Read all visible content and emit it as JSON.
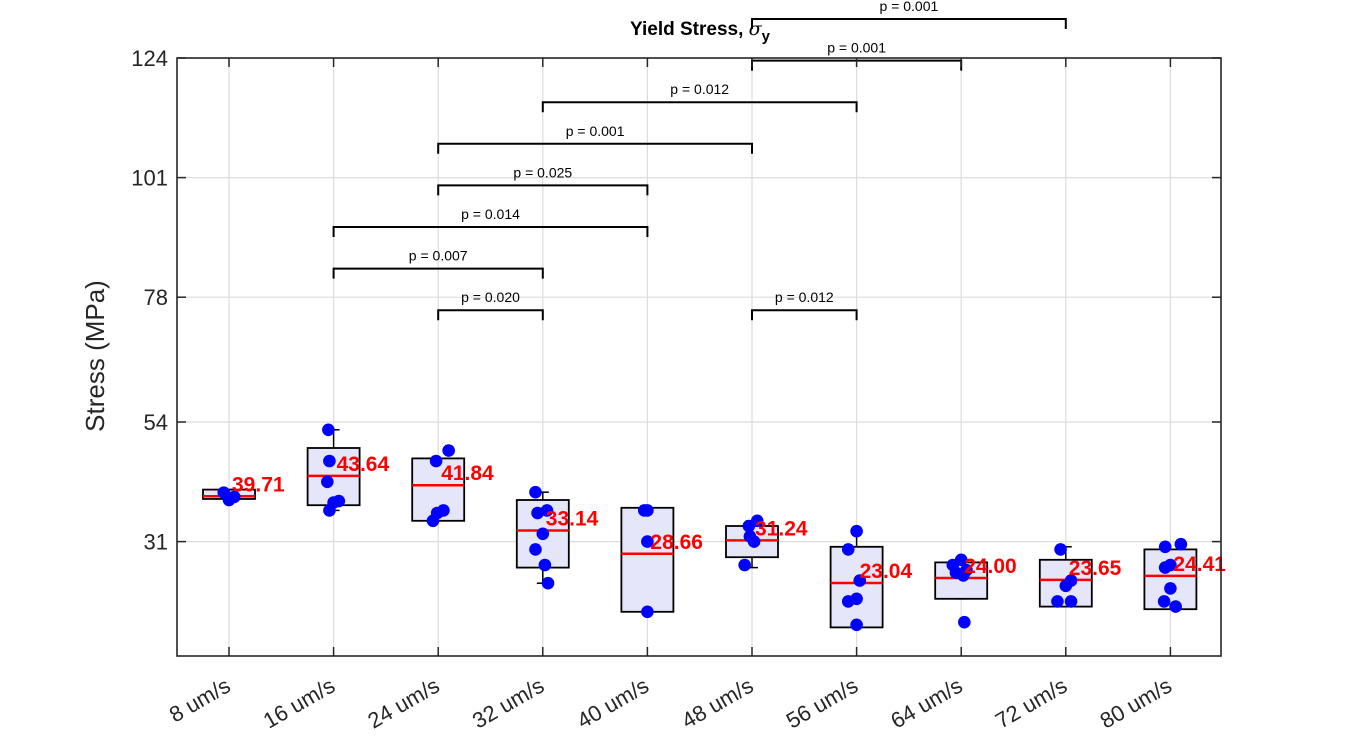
{
  "chart_data": {
    "type": "box",
    "title": "Yield Stress, ",
    "title_symbol": "σ",
    "title_subscript": "y",
    "xlabel": "",
    "ylabel": "Stress (MPa)",
    "ylim": [
      14,
      124
    ],
    "yticks": [
      "31",
      "54",
      "78",
      "101",
      "124"
    ],
    "grid": true,
    "categories": [
      "8 um/s",
      "16 um/s",
      "24 um/s",
      "32 um/s",
      "40 um/s",
      "48 um/s",
      "56 um/s",
      "64 um/s",
      "72 um/s",
      "80 um/s"
    ],
    "median_labels": [
      "39.71",
      "43.64",
      "41.84",
      "33.14",
      "28.66",
      "31.24",
      "23.04",
      "24.00",
      "23.65",
      "24.41"
    ],
    "medians": [
      39.71,
      43.64,
      41.84,
      33.14,
      28.66,
      31.24,
      23.04,
      24.0,
      23.65,
      24.41
    ],
    "boxes": [
      {
        "q1": 39.2,
        "q3": 41.0,
        "wlo": 39.2,
        "whi": 41.0
      },
      {
        "q1": 38.0,
        "q3": 49.0,
        "wlo": 37.0,
        "whi": 52.5
      },
      {
        "q1": 35.0,
        "q3": 47.0,
        "wlo": 35.0,
        "whi": 47.0
      },
      {
        "q1": 26.0,
        "q3": 39.0,
        "wlo": 23.0,
        "whi": 40.5
      },
      {
        "q1": 17.5,
        "q3": 37.5,
        "wlo": 17.5,
        "whi": 37.5
      },
      {
        "q1": 28.0,
        "q3": 34.0,
        "wlo": 26.0,
        "whi": 35.0
      },
      {
        "q1": 14.5,
        "q3": 30.0,
        "wlo": 14.5,
        "whi": 33.0
      },
      {
        "q1": 20.0,
        "q3": 27.0,
        "wlo": 20.0,
        "whi": 27.0
      },
      {
        "q1": 18.5,
        "q3": 27.5,
        "wlo": 18.5,
        "whi": 30.0
      },
      {
        "q1": 18.0,
        "q3": 29.5,
        "wlo": 18.0,
        "whi": 29.5
      }
    ],
    "points": [
      [
        [
          -0.05,
          40.4
        ],
        [
          0.05,
          39.6
        ],
        [
          0.0,
          39.0
        ]
      ],
      [
        [
          -0.05,
          52.5
        ],
        [
          -0.04,
          46.5
        ],
        [
          -0.06,
          42.5
        ],
        [
          0.0,
          38.5
        ],
        [
          0.05,
          38.8
        ],
        [
          -0.04,
          37.0
        ]
      ],
      [
        [
          -0.02,
          46.5
        ],
        [
          0.1,
          48.5
        ],
        [
          -0.01,
          36.5
        ],
        [
          0.05,
          37.0
        ],
        [
          -0.05,
          35.0
        ]
      ],
      [
        [
          -0.07,
          40.5
        ],
        [
          -0.05,
          36.5
        ],
        [
          0.0,
          32.5
        ],
        [
          0.04,
          37.0
        ],
        [
          -0.07,
          29.5
        ],
        [
          0.02,
          26.5
        ],
        [
          0.05,
          23.0
        ]
      ],
      [
        [
          -0.03,
          37.0
        ],
        [
          0.0,
          37.0
        ],
        [
          0.0,
          31.0
        ],
        [
          0.0,
          17.5
        ]
      ],
      [
        [
          -0.03,
          34.0
        ],
        [
          0.05,
          35.0
        ],
        [
          -0.02,
          32.0
        ],
        [
          0.02,
          31.0
        ],
        [
          -0.07,
          26.5
        ]
      ],
      [
        [
          -0.08,
          29.5
        ],
        [
          0.0,
          33.0
        ],
        [
          0.03,
          23.5
        ],
        [
          -0.08,
          19.5
        ],
        [
          0.0,
          20.0
        ],
        [
          0.0,
          15.0
        ]
      ],
      [
        [
          -0.08,
          26.5
        ],
        [
          0.0,
          27.5
        ],
        [
          -0.05,
          25.0
        ],
        [
          0.02,
          24.5
        ],
        [
          0.05,
          25.5
        ],
        [
          0.03,
          15.5
        ]
      ],
      [
        [
          -0.05,
          29.5
        ],
        [
          0.05,
          23.5
        ],
        [
          0.0,
          22.5
        ],
        [
          -0.08,
          19.5
        ],
        [
          0.05,
          19.5
        ]
      ],
      [
        [
          0.1,
          30.5
        ],
        [
          -0.05,
          30.0
        ],
        [
          -0.05,
          26.0
        ],
        [
          0.0,
          26.5
        ],
        [
          0.0,
          22.0
        ],
        [
          -0.06,
          19.5
        ],
        [
          0.05,
          18.5
        ]
      ]
    ],
    "significance": [
      {
        "from": 1,
        "to": 3,
        "y": 106.5,
        "label": "p = 0.001"
      },
      {
        "from": 1,
        "to": 3,
        "y": 106.5,
        "label": "p = 0.001"
      }
    ],
    "brackets": [
      {
        "from": 3,
        "to": 4,
        "y": 75.5,
        "label": "p = 0.020"
      },
      {
        "from": 2,
        "to": 4,
        "y": 83.5,
        "label": "p = 0.007"
      },
      {
        "from": 2,
        "to": 5,
        "y": 91.5,
        "label": "p = 0.014"
      },
      {
        "from": 3,
        "to": 5,
        "y": 99.5,
        "label": "p = 0.025"
      },
      {
        "from": 3,
        "to": 6,
        "y": 107.5,
        "label": "p = 0.001"
      },
      {
        "from": 4,
        "to": 7,
        "y": 115.5,
        "label": "p = 0.012"
      },
      {
        "from": 6,
        "to": 8,
        "y": 123.5,
        "label": "p = 0.001"
      },
      {
        "from": 6,
        "to": 9,
        "y": 131.5,
        "label": "p = 0.001"
      },
      {
        "from": 6,
        "to": 7,
        "y": 75.5,
        "label": "p = 0.012"
      }
    ],
    "colors": {
      "box_fill": "#e6e6fa",
      "box_edge": "#000000",
      "median": "#ff0000",
      "points": "#0000ff",
      "median_label": "#ff0000",
      "grid": "#dcdcdc"
    }
  }
}
